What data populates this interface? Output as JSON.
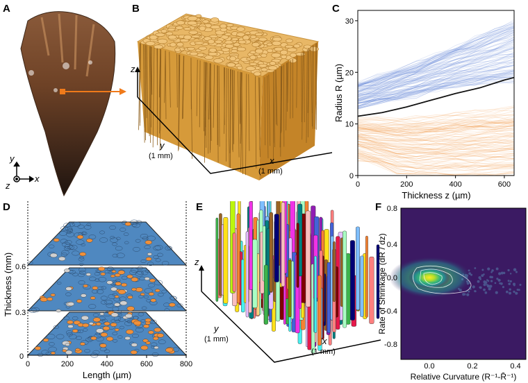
{
  "panels": {
    "a": {
      "letter": "A",
      "axes": {
        "y": "y",
        "z": "z",
        "x": "x"
      }
    },
    "b": {
      "letter": "B",
      "z_label": "z",
      "y_label": "y",
      "y_sub": "(1 mm)",
      "x_label": "x",
      "x_sub": "(1 mm)"
    },
    "c": {
      "letter": "C"
    },
    "d": {
      "letter": "D",
      "ylabel": "Thickness (mm)",
      "xlabel": "Length (µm)",
      "yticks": [
        "0",
        "0.3",
        "0.6"
      ],
      "xticks": [
        "0",
        "200",
        "400",
        "600",
        "800"
      ]
    },
    "e": {
      "letter": "E",
      "z_label": "z",
      "y_label": "y",
      "y_sub": "(1 mm)",
      "x_label": "x",
      "x_sub": "(1 mm)"
    },
    "f": {
      "letter": "F",
      "ylabel": "Rate of Shrinkage (dR / dz)",
      "xlabel": "Relative Curvature (R⁻¹-R̄⁻¹)",
      "yticks": [
        "0.8",
        "0.4",
        "0.0",
        "-0.4",
        "-0.8"
      ],
      "xticks": [
        "0.0",
        "0.2",
        "0.4"
      ]
    }
  },
  "colors": {
    "blue": "#5b7fd8",
    "orange": "#f0903a",
    "mean": "#111111",
    "viridis_bg": "#3b1a63",
    "ochre": "#d69a3a"
  },
  "chart_data": {
    "type": "line",
    "xlabel": "Thickness z (µm)",
    "ylabel": "Radius R (µm)",
    "xlim": [
      0,
      640
    ],
    "ylim": [
      0,
      32
    ],
    "xticks": [
      0,
      200,
      400,
      600
    ],
    "yticks": [
      0,
      10,
      20,
      30
    ],
    "series": [
      {
        "x": [
          0,
          100,
          200,
          300,
          400,
          500,
          600,
          640
        ],
        "values": [
          11.5,
          12.2,
          13.3,
          14.6,
          15.9,
          17.0,
          18.5,
          19.0
        ]
      }
    ],
    "bands": [
      {
        "color": "blue",
        "x": [
          0,
          200,
          400,
          640
        ],
        "low": [
          13,
          15,
          17,
          18
        ],
        "high": [
          18,
          21,
          25,
          30
        ]
      },
      {
        "color": "orange",
        "x": [
          0,
          200,
          400,
          640
        ],
        "low": [
          3,
          0,
          0,
          0
        ],
        "high": [
          11,
          11,
          12,
          13
        ]
      }
    ]
  }
}
